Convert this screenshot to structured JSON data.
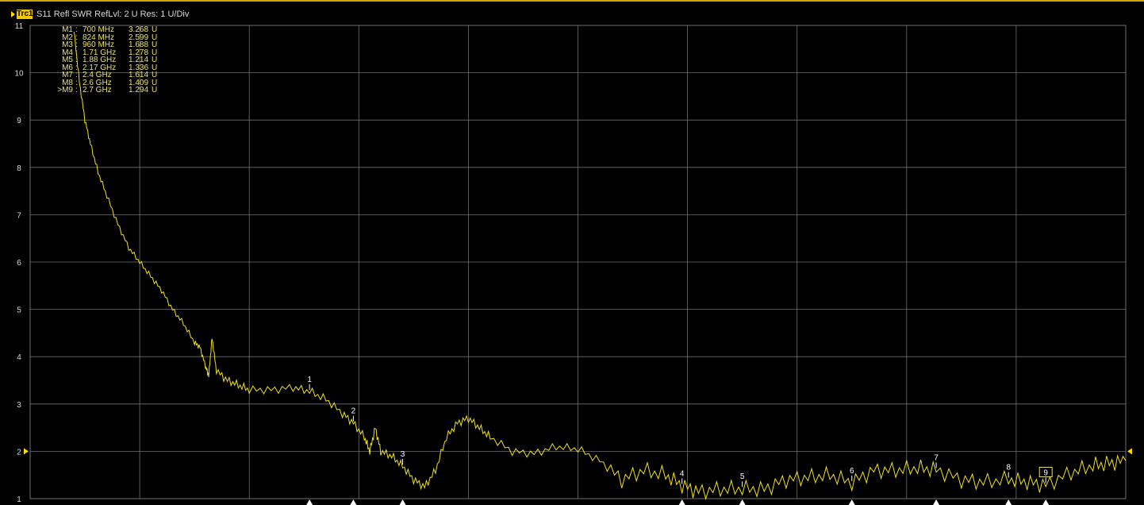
{
  "trace": {
    "badge": "Trc1",
    "title": "S11 Refl SWR RefLvl: 2  U Res: 1  U/Div"
  },
  "colors": {
    "trace": "#f0e020",
    "grid": "#707070",
    "background": "#000000",
    "marker_text": "#e8e070",
    "marker_triangle": "#ffffff",
    "ref_arrow": "#ffd700"
  },
  "markers": [
    {
      "name": "M1",
      "sep": ":",
      "freq": "700 MHz",
      "value": "3.268",
      "unit": "U"
    },
    {
      "name": "M2",
      "sep": ":",
      "freq": "824 MHz",
      "value": "2.599",
      "unit": "U"
    },
    {
      "name": "M3",
      "sep": ":",
      "freq": "960 MHz",
      "value": "1.688",
      "unit": "U"
    },
    {
      "name": "M4",
      "sep": ":",
      "freq": "1.71 GHz",
      "value": "1.278",
      "unit": "U"
    },
    {
      "name": "M5",
      "sep": ":",
      "freq": "1.88 GHz",
      "value": "1.214",
      "unit": "U"
    },
    {
      "name": "M6",
      "sep": ":",
      "freq": "2.17 GHz",
      "value": "1.336",
      "unit": "U"
    },
    {
      "name": "M7",
      "sep": ":",
      "freq": "2.4 GHz",
      "value": "1.614",
      "unit": "U"
    },
    {
      "name": "M8",
      "sep": ":",
      "freq": "2.6 GHz",
      "value": "1.409",
      "unit": "U"
    },
    {
      "name": ">M9",
      "sep": ":",
      "freq": "2.7 GHz",
      "value": "1.294",
      "unit": "U"
    }
  ],
  "chart_data": {
    "type": "line",
    "title": "S11 Refl SWR RefLvl: 2  U Res: 1  U/Div",
    "xlabel": "",
    "ylabel": "",
    "ylim": [
      1,
      11
    ],
    "yticks": [
      "11",
      "10",
      "9",
      "8",
      "7",
      "6",
      "5",
      "4",
      "3",
      "2",
      "1"
    ],
    "x_divisions": 10,
    "grid": true,
    "reference_level": 2,
    "marker_labels": [
      "1",
      "2",
      "3",
      "4",
      "5",
      "6",
      "7",
      "8",
      "9"
    ],
    "marker_positions": [
      {
        "label": "1",
        "x_div": 2.55,
        "y": 3.268
      },
      {
        "label": "2",
        "x_div": 2.95,
        "y": 2.599
      },
      {
        "label": "3",
        "x_div": 3.4,
        "y": 1.688
      },
      {
        "label": "4",
        "x_div": 5.95,
        "y": 1.278
      },
      {
        "label": "5",
        "x_div": 6.5,
        "y": 1.214
      },
      {
        "label": "6",
        "x_div": 7.5,
        "y": 1.336
      },
      {
        "label": "7",
        "x_div": 8.27,
        "y": 1.614
      },
      {
        "label": "8",
        "x_div": 8.93,
        "y": 1.409
      },
      {
        "label": "9",
        "x_div": 9.27,
        "y": 1.294,
        "active": true
      }
    ],
    "series": [
      {
        "values": [
          [
            0.4,
            10.9
          ],
          [
            0.45,
            9.8
          ],
          [
            0.5,
            9.0
          ],
          [
            0.55,
            8.5
          ],
          [
            0.62,
            7.9
          ],
          [
            0.7,
            7.4
          ],
          [
            0.8,
            6.8
          ],
          [
            0.9,
            6.3
          ],
          [
            1.0,
            6.0
          ],
          [
            1.1,
            5.7
          ],
          [
            1.2,
            5.4
          ],
          [
            1.3,
            5.0
          ],
          [
            1.4,
            4.7
          ],
          [
            1.5,
            4.3
          ],
          [
            1.55,
            4.2
          ],
          [
            1.6,
            3.8
          ],
          [
            1.63,
            3.6
          ],
          [
            1.66,
            4.4
          ],
          [
            1.7,
            3.7
          ],
          [
            1.8,
            3.5
          ],
          [
            1.9,
            3.4
          ],
          [
            2.0,
            3.3
          ],
          [
            2.2,
            3.3
          ],
          [
            2.4,
            3.35
          ],
          [
            2.55,
            3.27
          ],
          [
            2.7,
            3.1
          ],
          [
            2.85,
            2.8
          ],
          [
            2.95,
            2.6
          ],
          [
            3.05,
            2.3
          ],
          [
            3.1,
            2.0
          ],
          [
            3.15,
            2.5
          ],
          [
            3.2,
            2.0
          ],
          [
            3.3,
            1.9
          ],
          [
            3.4,
            1.69
          ],
          [
            3.5,
            1.4
          ],
          [
            3.6,
            1.25
          ],
          [
            3.7,
            1.6
          ],
          [
            3.8,
            2.3
          ],
          [
            3.9,
            2.6
          ],
          [
            4.0,
            2.7
          ],
          [
            4.1,
            2.5
          ],
          [
            4.2,
            2.3
          ],
          [
            4.4,
            2.0
          ],
          [
            4.6,
            1.95
          ],
          [
            4.8,
            2.1
          ],
          [
            5.0,
            2.05
          ],
          [
            5.2,
            1.8
          ],
          [
            5.4,
            1.4
          ],
          [
            5.6,
            1.6
          ],
          [
            5.8,
            1.5
          ],
          [
            5.95,
            1.28
          ],
          [
            6.1,
            1.15
          ],
          [
            6.3,
            1.2
          ],
          [
            6.5,
            1.21
          ],
          [
            6.7,
            1.2
          ],
          [
            6.9,
            1.4
          ],
          [
            7.1,
            1.45
          ],
          [
            7.3,
            1.5
          ],
          [
            7.5,
            1.34
          ],
          [
            7.7,
            1.6
          ],
          [
            7.9,
            1.6
          ],
          [
            8.1,
            1.65
          ],
          [
            8.27,
            1.61
          ],
          [
            8.5,
            1.4
          ],
          [
            8.7,
            1.35
          ],
          [
            8.93,
            1.41
          ],
          [
            9.1,
            1.35
          ],
          [
            9.27,
            1.29
          ],
          [
            9.5,
            1.55
          ],
          [
            9.7,
            1.7
          ],
          [
            9.85,
            1.75
          ],
          [
            10.0,
            1.8
          ]
        ]
      }
    ]
  }
}
